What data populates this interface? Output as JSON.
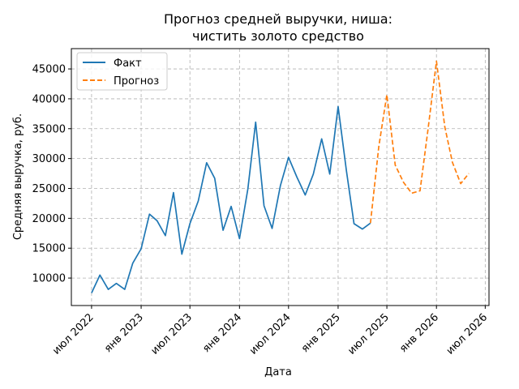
{
  "chart_data": {
    "type": "line",
    "title": [
      "Прогноз средней выручки, ниша:",
      "чистить золото средство"
    ],
    "xlabel": "Дата",
    "ylabel": "Средняя выручка, руб.",
    "x_tick_labels": [
      {
        "date": "2022-07",
        "label": "июл 2022"
      },
      {
        "date": "2023-01",
        "label": "янв 2023"
      },
      {
        "date": "2023-07",
        "label": "июл 2023"
      },
      {
        "date": "2024-01",
        "label": "янв 2024"
      },
      {
        "date": "2024-07",
        "label": "июл 2024"
      },
      {
        "date": "2025-01",
        "label": "янв 2025"
      },
      {
        "date": "2025-07",
        "label": "июл 2025"
      },
      {
        "date": "2026-01",
        "label": "янв 2026"
      },
      {
        "date": "2026-07",
        "label": "июл 2026"
      }
    ],
    "y_ticks": [
      10000,
      15000,
      20000,
      25000,
      30000,
      35000,
      40000,
      45000
    ],
    "y_tick_labels": [
      "10000",
      "15000",
      "20000",
      "25000",
      "30000",
      "35000",
      "40000",
      "45000"
    ],
    "xlim": [
      "2022-04-17",
      "2026-07-15"
    ],
    "ylim": [
      5400,
      48400
    ],
    "grid": true,
    "legend_position": "top-left",
    "series": [
      {
        "name": "Факт",
        "color": "#1f77b4",
        "style": "solid",
        "points": [
          {
            "x": "2022-07",
            "y": 7500
          },
          {
            "x": "2022-08",
            "y": 10500
          },
          {
            "x": "2022-09",
            "y": 8100
          },
          {
            "x": "2022-10",
            "y": 9100
          },
          {
            "x": "2022-11",
            "y": 8100
          },
          {
            "x": "2022-12",
            "y": 12500
          },
          {
            "x": "2023-01",
            "y": 14900
          },
          {
            "x": "2023-02",
            "y": 20700
          },
          {
            "x": "2023-03",
            "y": 19600
          },
          {
            "x": "2023-04",
            "y": 17100
          },
          {
            "x": "2023-05",
            "y": 24300
          },
          {
            "x": "2023-06",
            "y": 14000
          },
          {
            "x": "2023-07",
            "y": 19100
          },
          {
            "x": "2023-08",
            "y": 22900
          },
          {
            "x": "2023-09",
            "y": 29300
          },
          {
            "x": "2023-10",
            "y": 26700
          },
          {
            "x": "2023-11",
            "y": 18000
          },
          {
            "x": "2023-12",
            "y": 22000
          },
          {
            "x": "2024-01",
            "y": 16600
          },
          {
            "x": "2024-02",
            "y": 24900
          },
          {
            "x": "2024-03",
            "y": 36100
          },
          {
            "x": "2024-04",
            "y": 22100
          },
          {
            "x": "2024-05",
            "y": 18300
          },
          {
            "x": "2024-06",
            "y": 25500
          },
          {
            "x": "2024-07",
            "y": 30200
          },
          {
            "x": "2024-08",
            "y": 26900
          },
          {
            "x": "2024-09",
            "y": 23900
          },
          {
            "x": "2024-10",
            "y": 27400
          },
          {
            "x": "2024-11",
            "y": 33300
          },
          {
            "x": "2024-12",
            "y": 27400
          },
          {
            "x": "2025-01",
            "y": 38700
          },
          {
            "x": "2025-02",
            "y": 27900
          },
          {
            "x": "2025-03",
            "y": 19100
          },
          {
            "x": "2025-04",
            "y": 18200
          },
          {
            "x": "2025-05",
            "y": 19200
          }
        ]
      },
      {
        "name": "Прогноз",
        "color": "#ff7f0e",
        "style": "dashed",
        "points": [
          {
            "x": "2025-05",
            "y": 19200
          },
          {
            "x": "2025-06",
            "y": 32000
          },
          {
            "x": "2025-07",
            "y": 40700
          },
          {
            "x": "2025-08",
            "y": 28900
          },
          {
            "x": "2025-09",
            "y": 26000
          },
          {
            "x": "2025-10",
            "y": 24200
          },
          {
            "x": "2025-11",
            "y": 24600
          },
          {
            "x": "2025-12",
            "y": 35000
          },
          {
            "x": "2026-01",
            "y": 46300
          },
          {
            "x": "2026-02",
            "y": 35300
          },
          {
            "x": "2026-03",
            "y": 29400
          },
          {
            "x": "2026-04",
            "y": 25800
          },
          {
            "x": "2026-05",
            "y": 27500
          }
        ]
      }
    ]
  }
}
